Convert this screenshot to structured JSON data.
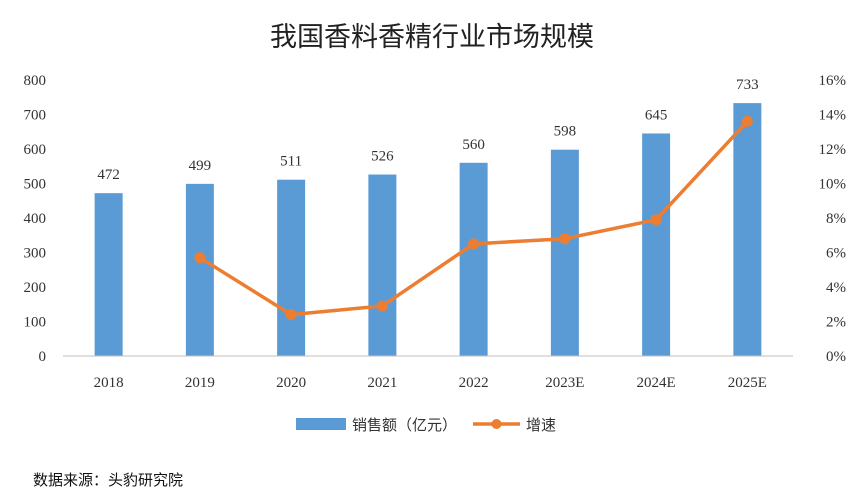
{
  "chart_data": {
    "type": "bar",
    "title": "我国香料香精行业市场规模",
    "categories": [
      "2018",
      "2019",
      "2020",
      "2021",
      "2022",
      "2023E",
      "2024E",
      "2025E"
    ],
    "series": [
      {
        "name": "销售额（亿元）",
        "type": "bar",
        "axis": "left",
        "color": "#5B9BD5",
        "values": [
          472,
          499,
          511,
          526,
          560,
          598,
          645,
          733
        ]
      },
      {
        "name": "增速",
        "type": "line",
        "axis": "right",
        "color": "#ED7D31",
        "values": [
          null,
          5.7,
          2.4,
          2.9,
          6.5,
          6.8,
          7.9,
          13.6
        ]
      }
    ],
    "ylim": [
      0,
      800
    ],
    "y_ticks": [
      "0",
      "100",
      "200",
      "300",
      "400",
      "500",
      "600",
      "700",
      "800"
    ],
    "y2lim": [
      0,
      16
    ],
    "y2_ticks": [
      "0%",
      "2%",
      "4%",
      "6%",
      "8%",
      "10%",
      "12%",
      "14%",
      "16%"
    ],
    "data_labels": [
      "472",
      "499",
      "511",
      "526",
      "560",
      "598",
      "645",
      "733"
    ],
    "legend_position": "bottom",
    "grid": false
  },
  "source": "数据来源：头豹研究院"
}
